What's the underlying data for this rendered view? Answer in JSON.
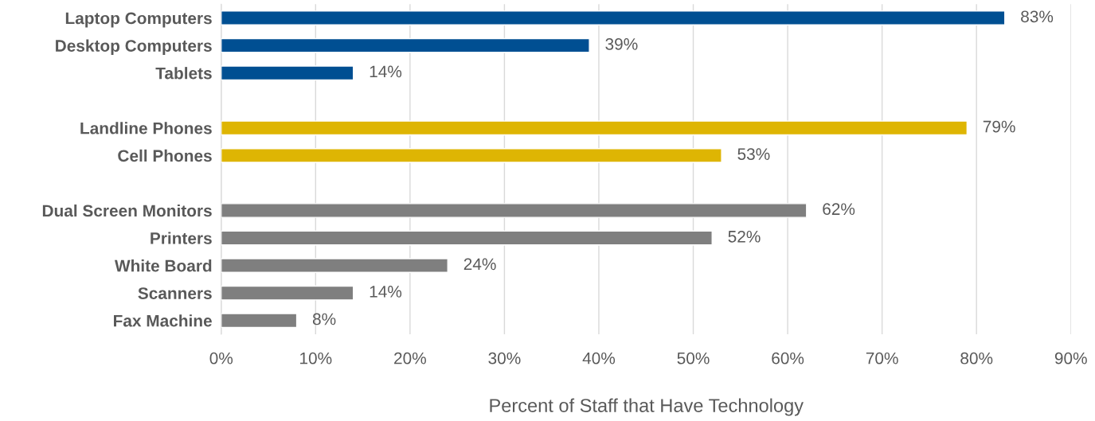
{
  "chart_data": {
    "type": "bar",
    "orientation": "horizontal",
    "xlabel": "Percent of Staff that Have Technology",
    "categories": [
      "Laptop Computers",
      "Desktop Computers",
      "Tablets",
      null,
      "Landline Phones",
      "Cell Phones",
      null,
      "Dual Screen Monitors",
      "Printers",
      "White Board",
      "Scanners",
      "Fax Machine"
    ],
    "values": [
      83,
      39,
      14,
      null,
      79,
      53,
      null,
      62,
      52,
      24,
      14,
      8
    ],
    "colors": [
      "#004f92",
      "#004f92",
      "#004f92",
      null,
      "#deb503",
      "#deb503",
      null,
      "#7f7f7f",
      "#7f7f7f",
      "#7f7f7f",
      "#7f7f7f",
      "#7f7f7f"
    ],
    "value_labels": [
      "83%",
      "39%",
      "14%",
      null,
      "79%",
      "53%",
      null,
      "62%",
      "52%",
      "24%",
      "14%",
      "8%"
    ],
    "xlim": [
      0,
      90
    ],
    "xticks": [
      {
        "value": 0,
        "label": "0%"
      },
      {
        "value": 10,
        "label": "10%"
      },
      {
        "value": 20,
        "label": "20%"
      },
      {
        "value": 30,
        "label": "30%"
      },
      {
        "value": 40,
        "label": "40%"
      },
      {
        "value": 50,
        "label": "50%"
      },
      {
        "value": 60,
        "label": "60%"
      },
      {
        "value": 70,
        "label": "70%"
      },
      {
        "value": 80,
        "label": "80%"
      },
      {
        "value": 90,
        "label": "90%"
      }
    ],
    "grid": "x",
    "legend": false
  }
}
